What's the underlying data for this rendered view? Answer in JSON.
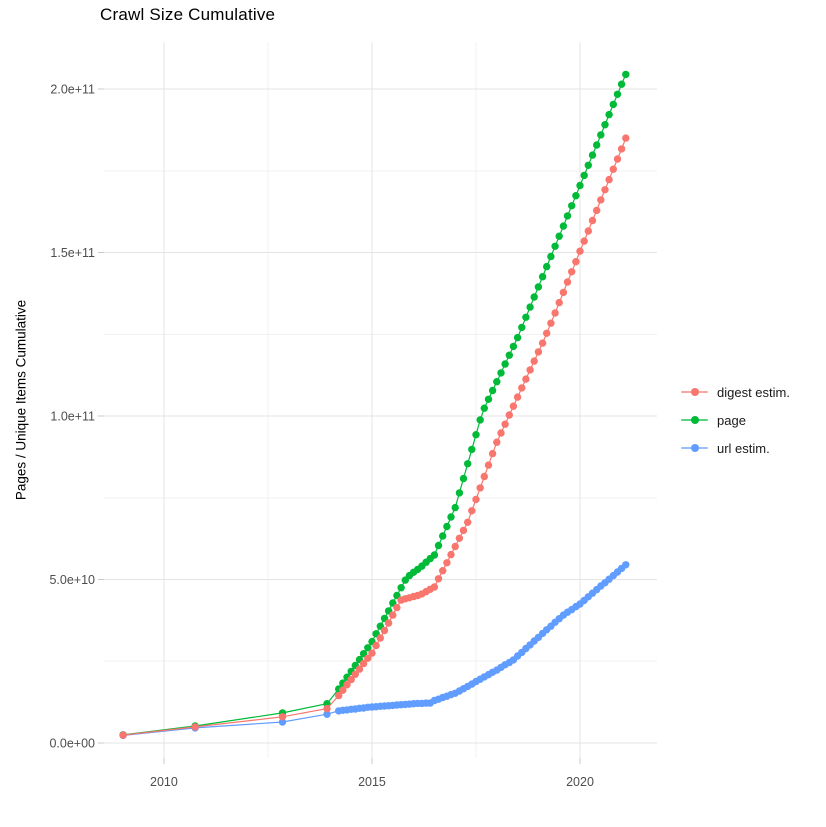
{
  "title": "Crawl Size Cumulative",
  "axes": {
    "y_title": "Pages / Unique Items Cumulative",
    "x_tick_labels": [
      "2010",
      "2015",
      "2020"
    ],
    "y_tick_labels": [
      "0.0e+00",
      "5.0e+10",
      "1.0e+11",
      "1.5e+11",
      "2.0e+11"
    ]
  },
  "legend": {
    "position": "right",
    "items": [
      {
        "label": "digest estim.",
        "color": "#F8766D"
      },
      {
        "label": "page",
        "color": "#00BA38"
      },
      {
        "label": "url estim.",
        "color": "#619CFF"
      }
    ]
  },
  "chart_data": {
    "type": "line",
    "marker": "point",
    "title": "Crawl Size Cumulative",
    "xlabel": "",
    "ylabel": "Pages / Unique Items Cumulative",
    "values_unit": "billions (1e9 pages / items)",
    "x_unit": "year (decimal)",
    "xlim": [
      2008.56,
      2021.85
    ],
    "ylim_billions": [
      -4.6,
      214.4
    ],
    "x_major_ticks": [
      2010,
      2015,
      2020
    ],
    "x_minor_ticks": [
      2012.5,
      2017.5
    ],
    "y_major_ticks_billions": [
      0,
      50,
      100,
      150,
      200
    ],
    "y_minor_ticks_billions": [
      25,
      75,
      125,
      175
    ],
    "grid": true,
    "legend_position": "right",
    "series": [
      {
        "name": "digest estim.",
        "color": "#F8766D",
        "points": [
          [
            2009.02,
            2.4
          ],
          [
            2010.75,
            4.9
          ],
          [
            2012.85,
            8.0
          ],
          [
            2013.92,
            10.5
          ],
          [
            2014.2,
            14.5
          ],
          [
            2014.3,
            16.1
          ],
          [
            2014.4,
            17.8
          ],
          [
            2014.5,
            19.4
          ],
          [
            2014.6,
            21.0
          ],
          [
            2014.7,
            22.6
          ],
          [
            2014.8,
            24.3
          ],
          [
            2014.9,
            25.9
          ],
          [
            2015.0,
            27.5
          ],
          [
            2015.1,
            29.8
          ],
          [
            2015.2,
            32.1
          ],
          [
            2015.3,
            34.4
          ],
          [
            2015.4,
            36.7
          ],
          [
            2015.5,
            39.1
          ],
          [
            2015.6,
            41.4
          ],
          [
            2015.7,
            43.7
          ],
          [
            2015.8,
            44.1
          ],
          [
            2015.9,
            44.4
          ],
          [
            2016.0,
            44.8
          ],
          [
            2016.1,
            45.1
          ],
          [
            2016.2,
            45.6
          ],
          [
            2016.3,
            46.3
          ],
          [
            2016.4,
            47.0
          ],
          [
            2016.5,
            47.7
          ],
          [
            2016.6,
            50.2
          ],
          [
            2016.7,
            52.7
          ],
          [
            2016.8,
            55.1
          ],
          [
            2016.9,
            57.6
          ],
          [
            2017.0,
            60.1
          ],
          [
            2017.1,
            62.6
          ],
          [
            2017.2,
            65.0
          ],
          [
            2017.3,
            67.5
          ],
          [
            2017.4,
            71.0
          ],
          [
            2017.5,
            74.5
          ],
          [
            2017.6,
            78.0
          ],
          [
            2017.7,
            81.5
          ],
          [
            2017.8,
            85.0
          ],
          [
            2017.9,
            88.5
          ],
          [
            2018.0,
            92.0
          ],
          [
            2018.1,
            94.8
          ],
          [
            2018.2,
            97.5
          ],
          [
            2018.3,
            100.3
          ],
          [
            2018.4,
            103.0
          ],
          [
            2018.5,
            105.8
          ],
          [
            2018.6,
            108.6
          ],
          [
            2018.7,
            111.3
          ],
          [
            2018.8,
            114.1
          ],
          [
            2018.9,
            116.8
          ],
          [
            2019.0,
            119.6
          ],
          [
            2019.1,
            122.3
          ],
          [
            2019.2,
            125.3
          ],
          [
            2019.3,
            128.4
          ],
          [
            2019.4,
            131.5
          ],
          [
            2019.5,
            134.7
          ],
          [
            2019.6,
            137.8
          ],
          [
            2019.7,
            141.0
          ],
          [
            2019.8,
            144.1
          ],
          [
            2019.9,
            147.2
          ],
          [
            2020.0,
            150.4
          ],
          [
            2020.1,
            153.5
          ],
          [
            2020.2,
            156.6
          ],
          [
            2020.3,
            159.8
          ],
          [
            2020.4,
            162.9
          ],
          [
            2020.5,
            166.1
          ],
          [
            2020.6,
            169.2
          ],
          [
            2020.7,
            172.3
          ],
          [
            2020.8,
            175.5
          ],
          [
            2020.9,
            178.6
          ],
          [
            2021.0,
            181.7
          ],
          [
            2021.1,
            185.0
          ]
        ]
      },
      {
        "name": "page",
        "color": "#00BA38",
        "points": [
          [
            2009.02,
            2.5
          ],
          [
            2010.75,
            5.2
          ],
          [
            2012.85,
            9.2
          ],
          [
            2013.92,
            12.0
          ],
          [
            2014.2,
            16.5
          ],
          [
            2014.3,
            18.3
          ],
          [
            2014.4,
            20.1
          ],
          [
            2014.5,
            21.9
          ],
          [
            2014.6,
            23.7
          ],
          [
            2014.7,
            25.5
          ],
          [
            2014.8,
            27.3
          ],
          [
            2014.9,
            29.1
          ],
          [
            2015.0,
            31.0
          ],
          [
            2015.1,
            33.4
          ],
          [
            2015.2,
            35.7
          ],
          [
            2015.3,
            38.1
          ],
          [
            2015.4,
            40.4
          ],
          [
            2015.5,
            42.8
          ],
          [
            2015.6,
            45.1
          ],
          [
            2015.7,
            47.5
          ],
          [
            2015.8,
            49.8
          ],
          [
            2015.9,
            51.2
          ],
          [
            2016.0,
            52.2
          ],
          [
            2016.1,
            53.1
          ],
          [
            2016.2,
            54.1
          ],
          [
            2016.3,
            55.3
          ],
          [
            2016.4,
            56.4
          ],
          [
            2016.5,
            57.5
          ],
          [
            2016.6,
            60.4
          ],
          [
            2016.7,
            63.3
          ],
          [
            2016.8,
            66.2
          ],
          [
            2016.9,
            69.1
          ],
          [
            2017.0,
            72.0
          ],
          [
            2017.1,
            76.5
          ],
          [
            2017.2,
            80.9
          ],
          [
            2017.3,
            85.4
          ],
          [
            2017.4,
            89.8
          ],
          [
            2017.5,
            94.3
          ],
          [
            2017.6,
            98.8
          ],
          [
            2017.7,
            102.4
          ],
          [
            2017.8,
            105.1
          ],
          [
            2017.9,
            107.8
          ],
          [
            2018.0,
            110.5
          ],
          [
            2018.1,
            113.2
          ],
          [
            2018.2,
            115.9
          ],
          [
            2018.3,
            118.6
          ],
          [
            2018.4,
            121.3
          ],
          [
            2018.5,
            124.0
          ],
          [
            2018.6,
            127.1
          ],
          [
            2018.7,
            130.2
          ],
          [
            2018.8,
            133.3
          ],
          [
            2018.9,
            136.4
          ],
          [
            2019.0,
            139.5
          ],
          [
            2019.1,
            142.6
          ],
          [
            2019.2,
            145.7
          ],
          [
            2019.3,
            148.8
          ],
          [
            2019.4,
            151.9
          ],
          [
            2019.5,
            155.0
          ],
          [
            2019.6,
            158.1
          ],
          [
            2019.7,
            161.2
          ],
          [
            2019.8,
            164.3
          ],
          [
            2019.9,
            167.4
          ],
          [
            2020.0,
            170.5
          ],
          [
            2020.1,
            173.6
          ],
          [
            2020.2,
            176.7
          ],
          [
            2020.3,
            179.8
          ],
          [
            2020.4,
            182.9
          ],
          [
            2020.5,
            186.0
          ],
          [
            2020.6,
            189.1
          ],
          [
            2020.7,
            192.2
          ],
          [
            2020.8,
            195.3
          ],
          [
            2020.9,
            198.4
          ],
          [
            2021.0,
            201.5
          ],
          [
            2021.1,
            204.5
          ]
        ]
      },
      {
        "name": "url estim.",
        "color": "#619CFF",
        "points": [
          [
            2009.02,
            2.3
          ],
          [
            2010.75,
            4.6
          ],
          [
            2012.85,
            6.4
          ],
          [
            2013.92,
            8.8
          ],
          [
            2014.2,
            9.8
          ],
          [
            2014.3,
            10.0
          ],
          [
            2014.4,
            10.1
          ],
          [
            2014.5,
            10.3
          ],
          [
            2014.6,
            10.4
          ],
          [
            2014.7,
            10.6
          ],
          [
            2014.8,
            10.7
          ],
          [
            2014.9,
            10.9
          ],
          [
            2015.0,
            11.0
          ],
          [
            2015.1,
            11.1
          ],
          [
            2015.2,
            11.2
          ],
          [
            2015.3,
            11.3
          ],
          [
            2015.4,
            11.4
          ],
          [
            2015.5,
            11.5
          ],
          [
            2015.6,
            11.6
          ],
          [
            2015.7,
            11.7
          ],
          [
            2015.8,
            11.8
          ],
          [
            2015.9,
            11.9
          ],
          [
            2016.0,
            12.0
          ],
          [
            2016.1,
            12.1
          ],
          [
            2016.2,
            12.1
          ],
          [
            2016.3,
            12.2
          ],
          [
            2016.4,
            12.2
          ],
          [
            2016.5,
            13.0
          ],
          [
            2016.6,
            13.4
          ],
          [
            2016.7,
            13.9
          ],
          [
            2016.8,
            14.3
          ],
          [
            2016.9,
            14.8
          ],
          [
            2017.0,
            15.2
          ],
          [
            2017.1,
            15.9
          ],
          [
            2017.2,
            16.6
          ],
          [
            2017.3,
            17.3
          ],
          [
            2017.4,
            18.0
          ],
          [
            2017.5,
            18.8
          ],
          [
            2017.6,
            19.5
          ],
          [
            2017.7,
            20.2
          ],
          [
            2017.8,
            20.9
          ],
          [
            2017.9,
            21.6
          ],
          [
            2018.0,
            22.3
          ],
          [
            2018.1,
            23.1
          ],
          [
            2018.2,
            23.9
          ],
          [
            2018.3,
            24.6
          ],
          [
            2018.4,
            25.4
          ],
          [
            2018.5,
            26.6
          ],
          [
            2018.6,
            27.7
          ],
          [
            2018.7,
            28.9
          ],
          [
            2018.8,
            30.0
          ],
          [
            2018.9,
            31.2
          ],
          [
            2019.0,
            32.3
          ],
          [
            2019.1,
            33.5
          ],
          [
            2019.2,
            34.6
          ],
          [
            2019.3,
            35.7
          ],
          [
            2019.4,
            36.9
          ],
          [
            2019.5,
            38.0
          ],
          [
            2019.6,
            39.1
          ],
          [
            2019.7,
            40.0
          ],
          [
            2019.8,
            40.8
          ],
          [
            2019.9,
            41.7
          ],
          [
            2020.0,
            42.5
          ],
          [
            2020.1,
            43.6
          ],
          [
            2020.2,
            44.7
          ],
          [
            2020.3,
            45.8
          ],
          [
            2020.4,
            46.9
          ],
          [
            2020.5,
            48.0
          ],
          [
            2020.6,
            49.0
          ],
          [
            2020.7,
            50.1
          ],
          [
            2020.8,
            51.2
          ],
          [
            2020.9,
            52.3
          ],
          [
            2021.0,
            53.4
          ],
          [
            2021.1,
            54.5
          ]
        ]
      }
    ]
  }
}
